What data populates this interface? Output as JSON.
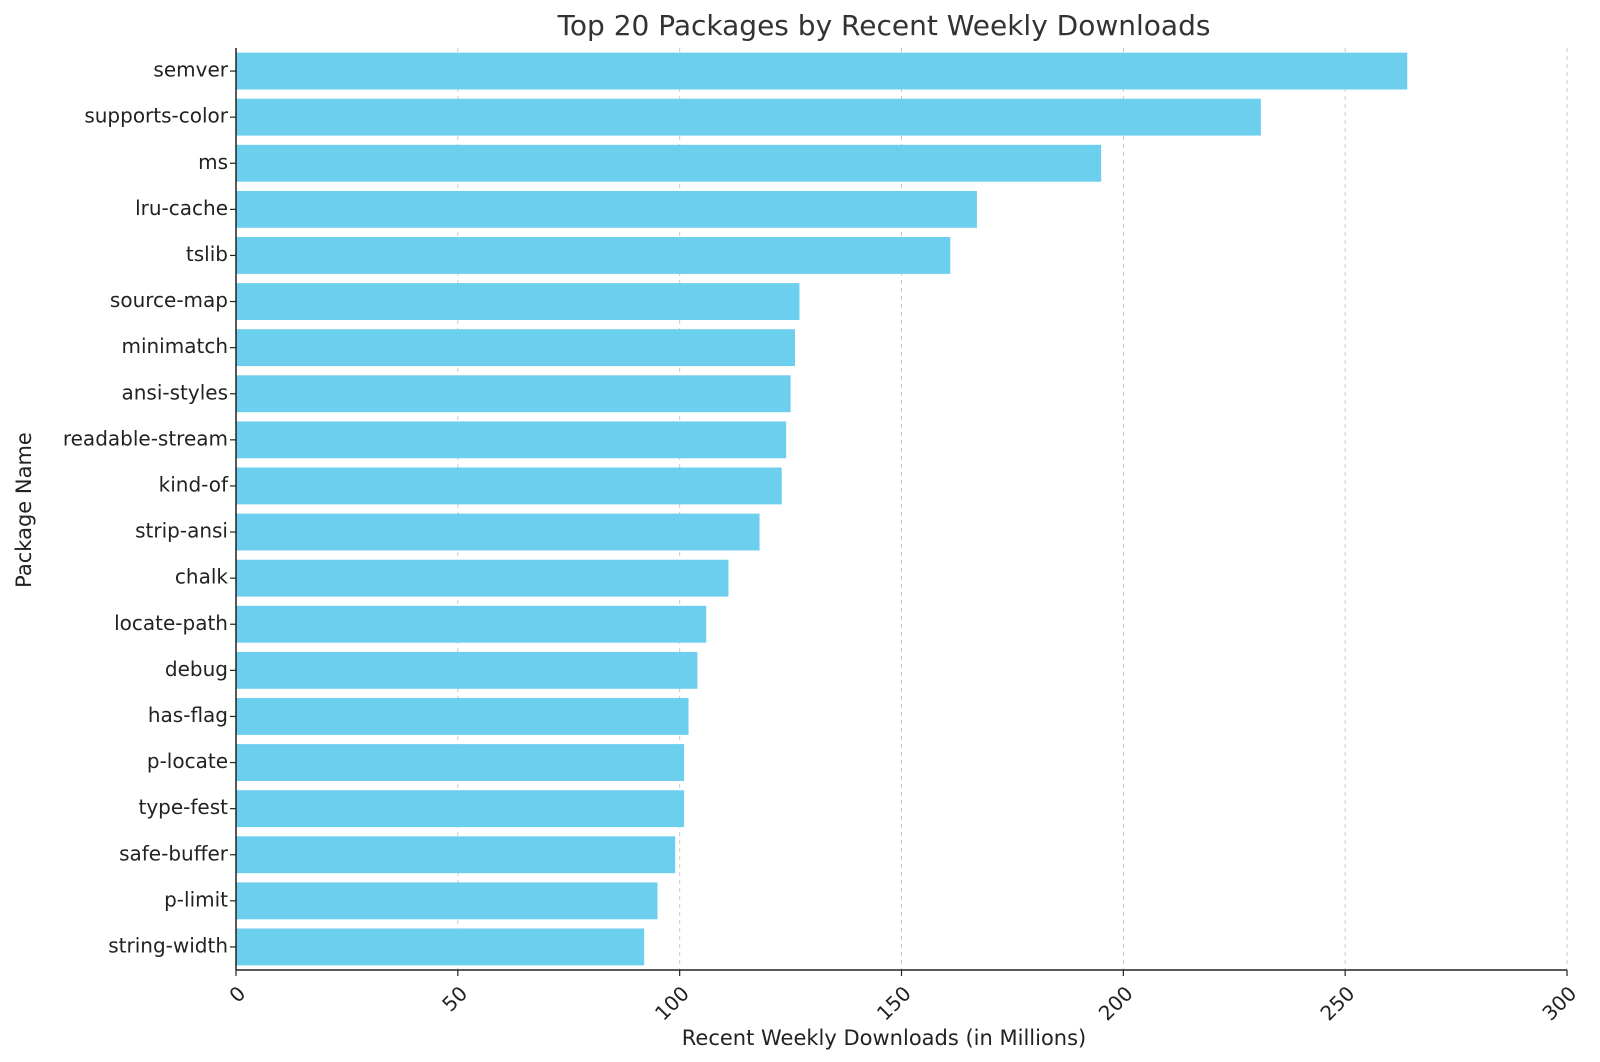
{
  "chart_data": {
    "type": "bar",
    "orientation": "horizontal",
    "title": "Top 20 Packages by Recent Weekly Downloads",
    "xlabel": "Recent Weekly Downloads (in Millions)",
    "ylabel": "Package Name",
    "categories": [
      "semver",
      "supports-color",
      "ms",
      "lru-cache",
      "tslib",
      "source-map",
      "minimatch",
      "ansi-styles",
      "readable-stream",
      "kind-of",
      "strip-ansi",
      "chalk",
      "locate-path",
      "debug",
      "has-flag",
      "p-locate",
      "type-fest",
      "safe-buffer",
      "p-limit",
      "string-width"
    ],
    "values": [
      264,
      231,
      195,
      167,
      161,
      127,
      126,
      125,
      124,
      123,
      118,
      111,
      106,
      104,
      102,
      101,
      101,
      99,
      95,
      92
    ],
    "xlim": [
      0,
      300
    ],
    "xticks": [
      "0",
      "50",
      "100",
      "150",
      "200",
      "250",
      "300"
    ],
    "xtick_values": [
      0,
      50,
      100,
      150,
      200,
      250,
      300
    ],
    "grid": "x-axis dashed",
    "bar_color": "#6dcfee"
  }
}
